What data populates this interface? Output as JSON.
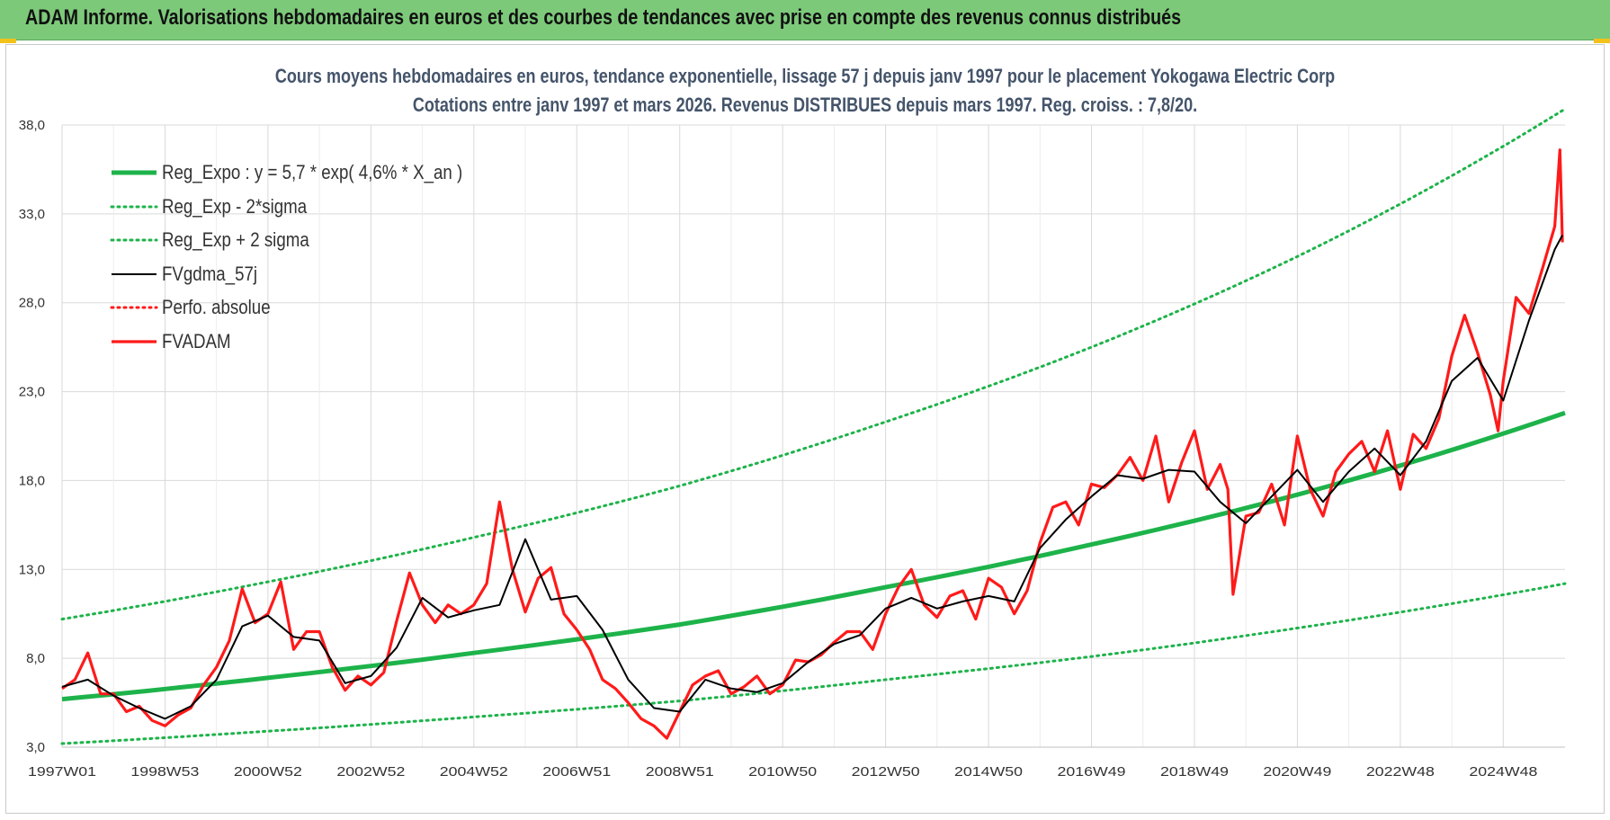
{
  "banner": {
    "title": "ADAM Informe. Valorisations hebdomadaires en euros et des courbes de tendances avec prise en compte des revenus connus distribués"
  },
  "colors": {
    "banner_bg": "#7dc97a",
    "green": "#1db34a",
    "red": "#ff1a1a",
    "black": "#000000",
    "title": "#44546a"
  },
  "chart_data": {
    "type": "line",
    "title": "Cours moyens hebdomadaires en euros, tendance exponentielle, lissage 57 j depuis janv 1997  pour le  placement Yokogawa Electric Corp",
    "subtitle": "Cotations entre janv 1997 et mars 2026. Revenus DISTRIBUES depuis mars 1997.  Reg. croiss. : 7,8/20.",
    "xlabel": "",
    "ylabel": "",
    "ylim": [
      3.0,
      38.0
    ],
    "xlim": [
      1997.0,
      2026.2
    ],
    "grid": true,
    "legend_position": "top-left",
    "y_ticks": [
      "3,0",
      "8,0",
      "13,0",
      "18,0",
      "23,0",
      "28,0",
      "33,0",
      "38,0"
    ],
    "y_tick_values": [
      3,
      8,
      13,
      18,
      23,
      28,
      33,
      38
    ],
    "x_ticks": [
      "1997W01",
      "1998W53",
      "2000W52",
      "2002W52",
      "2004W52",
      "2006W51",
      "2008W51",
      "2010W50",
      "2012W50",
      "2014W50",
      "2016W49",
      "2018W49",
      "2020W49",
      "2022W48",
      "2024W48"
    ],
    "x_tick_values": [
      1997.0,
      1999.0,
      2001.0,
      2003.0,
      2005.0,
      2007.0,
      2009.0,
      2011.0,
      2013.0,
      2015.0,
      2017.0,
      2019.0,
      2021.0,
      2023.0,
      2025.0
    ],
    "legend": [
      "Reg_Expo : y = 5,7 * exp( 4,6% *  X_an )",
      "Reg_Exp - 2*sigma",
      "Reg_Exp + 2 sigma",
      "FVgdma_57j",
      "Perfo. absolue",
      "FVADAM"
    ],
    "series": [
      {
        "name": "Reg_Expo : y = 5,7 * exp( 4,6% *  X_an )",
        "style": "solid-thick",
        "color": "#1db34a",
        "x": [
          1997.0,
          2001.0,
          2005.0,
          2009.0,
          2013.0,
          2017.0,
          2021.0,
          2026.2
        ],
        "y": [
          5.7,
          6.9,
          8.3,
          9.9,
          12.0,
          14.4,
          17.2,
          21.8
        ]
      },
      {
        "name": "Reg_Exp - 2*sigma",
        "style": "dotted",
        "color": "#1db34a",
        "x": [
          1997.0,
          2001.0,
          2005.0,
          2009.0,
          2013.0,
          2017.0,
          2021.0,
          2026.2
        ],
        "y": [
          3.2,
          3.9,
          4.7,
          5.6,
          6.8,
          8.1,
          9.7,
          12.2
        ]
      },
      {
        "name": "Reg_Exp + 2 sigma",
        "style": "dotted",
        "color": "#1db34a",
        "x": [
          1997.0,
          2001.0,
          2005.0,
          2009.0,
          2013.0,
          2017.0,
          2021.0,
          2026.2
        ],
        "y": [
          10.2,
          12.3,
          14.8,
          17.7,
          21.3,
          25.5,
          30.6,
          38.9
        ]
      },
      {
        "name": "FVgdma_57j",
        "style": "solid",
        "color": "#000000",
        "x": [
          1997.0,
          1997.5,
          1998.0,
          1998.5,
          1999.0,
          1999.5,
          2000.0,
          2000.5,
          2001.0,
          2001.5,
          2002.0,
          2002.5,
          2003.0,
          2003.5,
          2004.0,
          2004.5,
          2005.0,
          2005.5,
          2006.0,
          2006.5,
          2007.0,
          2007.5,
          2008.0,
          2008.5,
          2009.0,
          2009.5,
          2010.0,
          2010.5,
          2011.0,
          2011.5,
          2012.0,
          2012.5,
          2013.0,
          2013.5,
          2014.0,
          2014.5,
          2015.0,
          2015.5,
          2016.0,
          2016.5,
          2017.0,
          2017.5,
          2018.0,
          2018.5,
          2019.0,
          2019.5,
          2020.0,
          2020.5,
          2021.0,
          2021.5,
          2022.0,
          2022.5,
          2023.0,
          2023.5,
          2024.0,
          2024.5,
          2025.0,
          2025.5,
          2026.0,
          2026.15
        ],
        "y": [
          6.4,
          6.8,
          5.9,
          5.2,
          4.6,
          5.3,
          6.8,
          9.8,
          10.4,
          9.2,
          9.0,
          6.6,
          7.0,
          8.6,
          11.4,
          10.3,
          10.7,
          11.0,
          14.7,
          11.3,
          11.5,
          9.6,
          6.8,
          5.2,
          5.0,
          6.8,
          6.3,
          6.1,
          6.6,
          7.8,
          8.8,
          9.3,
          10.8,
          11.4,
          10.8,
          11.2,
          11.5,
          11.2,
          14.2,
          15.8,
          17.1,
          18.3,
          18.1,
          18.6,
          18.5,
          16.8,
          15.6,
          17.1,
          18.6,
          16.8,
          18.5,
          19.8,
          18.3,
          20.2,
          23.6,
          24.9,
          22.5,
          27.0,
          31.0,
          31.8
        ]
      },
      {
        "name": "Perfo. absolue",
        "style": "dotted",
        "color": "#ff1a1a",
        "x": [],
        "y": []
      },
      {
        "name": "FVADAM",
        "style": "solid-thick",
        "color": "#ff1a1a",
        "x": [
          1997.0,
          1997.25,
          1997.5,
          1997.75,
          1998.0,
          1998.25,
          1998.5,
          1998.75,
          1999.0,
          1999.25,
          1999.5,
          1999.75,
          2000.0,
          2000.25,
          2000.5,
          2000.75,
          2001.0,
          2001.25,
          2001.5,
          2001.75,
          2002.0,
          2002.25,
          2002.5,
          2002.75,
          2003.0,
          2003.25,
          2003.5,
          2003.75,
          2004.0,
          2004.25,
          2004.5,
          2004.75,
          2005.0,
          2005.25,
          2005.5,
          2005.75,
          2006.0,
          2006.25,
          2006.5,
          2006.75,
          2007.0,
          2007.25,
          2007.5,
          2007.75,
          2008.0,
          2008.25,
          2008.5,
          2008.75,
          2009.0,
          2009.25,
          2009.5,
          2009.75,
          2010.0,
          2010.25,
          2010.5,
          2010.75,
          2011.0,
          2011.25,
          2011.5,
          2011.75,
          2012.0,
          2012.25,
          2012.5,
          2012.75,
          2013.0,
          2013.25,
          2013.5,
          2013.75,
          2014.0,
          2014.25,
          2014.5,
          2014.75,
          2015.0,
          2015.25,
          2015.5,
          2015.75,
          2016.0,
          2016.25,
          2016.5,
          2016.75,
          2017.0,
          2017.25,
          2017.5,
          2017.75,
          2018.0,
          2018.25,
          2018.5,
          2018.75,
          2019.0,
          2019.25,
          2019.5,
          2019.65,
          2019.75,
          2020.0,
          2020.25,
          2020.5,
          2020.75,
          2021.0,
          2021.25,
          2021.5,
          2021.75,
          2022.0,
          2022.25,
          2022.5,
          2022.75,
          2023.0,
          2023.25,
          2023.5,
          2023.75,
          2024.0,
          2024.25,
          2024.5,
          2024.75,
          2024.9,
          2025.0,
          2025.25,
          2025.5,
          2025.75,
          2026.0,
          2026.1,
          2026.15
        ],
        "y": [
          6.3,
          6.8,
          8.3,
          6.0,
          6.0,
          5.0,
          5.3,
          4.5,
          4.2,
          4.8,
          5.2,
          6.5,
          7.5,
          9.0,
          11.9,
          10.0,
          10.5,
          12.3,
          8.5,
          9.5,
          9.5,
          7.5,
          6.2,
          7.0,
          6.5,
          7.2,
          10.1,
          12.8,
          11.0,
          10.0,
          11.0,
          10.5,
          11.0,
          12.2,
          16.8,
          13.0,
          10.6,
          12.5,
          13.1,
          10.5,
          9.6,
          8.5,
          6.8,
          6.3,
          5.5,
          4.6,
          4.2,
          3.5,
          5.0,
          6.5,
          7.0,
          7.3,
          6.0,
          6.4,
          7.0,
          6.0,
          6.5,
          7.9,
          7.8,
          8.2,
          8.9,
          9.5,
          9.5,
          8.5,
          10.5,
          12.0,
          13.0,
          11.0,
          10.3,
          11.5,
          11.8,
          10.2,
          12.5,
          12.0,
          10.5,
          11.8,
          14.5,
          16.5,
          16.8,
          15.5,
          17.8,
          17.6,
          18.3,
          19.3,
          18.0,
          20.5,
          16.8,
          19.0,
          20.8,
          17.5,
          18.9,
          17.5,
          11.6,
          16.0,
          16.2,
          17.8,
          15.5,
          20.5,
          17.5,
          16.0,
          18.5,
          19.5,
          20.2,
          18.5,
          20.8,
          17.5,
          20.6,
          19.8,
          21.5,
          25.0,
          27.3,
          25.2,
          22.8,
          20.8,
          23.6,
          28.3,
          27.4,
          29.8,
          32.3,
          36.6,
          31.4
        ]
      }
    ]
  }
}
